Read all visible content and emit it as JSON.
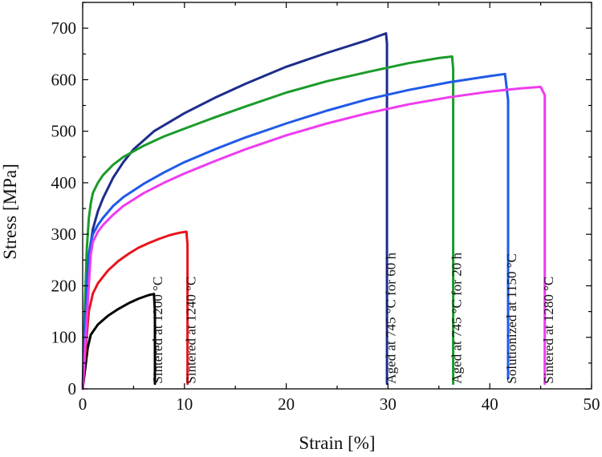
{
  "chart_data": {
    "type": "line",
    "title": "",
    "xlabel": "Strain [%]",
    "ylabel": "Stress [MPa]",
    "xlim": [
      0,
      50
    ],
    "ylim": [
      0,
      750
    ],
    "x_ticks": [
      0,
      10,
      20,
      30,
      40,
      50
    ],
    "y_ticks": [
      0,
      100,
      200,
      300,
      400,
      500,
      600,
      700
    ],
    "grid": false,
    "legend": "none (curves labeled directly by vertical annotations)",
    "series": [
      {
        "name": "Sintered at 1200 °C",
        "color": "#000000",
        "points": [
          [
            0,
            0
          ],
          [
            0.25,
            40
          ],
          [
            0.5,
            80
          ],
          [
            0.8,
            105
          ],
          [
            1.5,
            125
          ],
          [
            2.5,
            142
          ],
          [
            3.5,
            155
          ],
          [
            4.5,
            166
          ],
          [
            5.5,
            175
          ],
          [
            6.5,
            182
          ],
          [
            7.0,
            184
          ],
          [
            7.1,
            150
          ],
          [
            7.1,
            10
          ]
        ]
      },
      {
        "name": "Sintered at 1240 °C",
        "color": "#e8141c",
        "points": [
          [
            0,
            0
          ],
          [
            0.3,
            80
          ],
          [
            0.6,
            150
          ],
          [
            1.0,
            185
          ],
          [
            1.5,
            205
          ],
          [
            2.5,
            230
          ],
          [
            3.5,
            248
          ],
          [
            4.5,
            262
          ],
          [
            5.5,
            274
          ],
          [
            6.5,
            283
          ],
          [
            7.5,
            291
          ],
          [
            8.5,
            298
          ],
          [
            9.5,
            303
          ],
          [
            10.2,
            305
          ],
          [
            10.3,
            280
          ],
          [
            10.3,
            10
          ]
        ]
      },
      {
        "name": "Aged at 745 °C for 60 h",
        "color": "#1c2d8c",
        "points": [
          [
            0,
            0
          ],
          [
            0.2,
            100
          ],
          [
            0.4,
            200
          ],
          [
            0.7,
            270
          ],
          [
            1.0,
            310
          ],
          [
            1.5,
            345
          ],
          [
            2,
            370
          ],
          [
            3,
            410
          ],
          [
            4,
            440
          ],
          [
            5,
            465
          ],
          [
            7,
            500
          ],
          [
            10,
            535
          ],
          [
            13,
            565
          ],
          [
            16,
            592
          ],
          [
            20,
            625
          ],
          [
            24,
            652
          ],
          [
            28,
            677
          ],
          [
            29.8,
            690
          ],
          [
            29.9,
            670
          ],
          [
            29.9,
            10
          ]
        ]
      },
      {
        "name": "Aged at 745 °C for 20 h",
        "color": "#1a9b2a",
        "points": [
          [
            0,
            0
          ],
          [
            0.2,
            150
          ],
          [
            0.4,
            270
          ],
          [
            0.6,
            330
          ],
          [
            0.8,
            360
          ],
          [
            1.0,
            380
          ],
          [
            1.5,
            400
          ],
          [
            2,
            415
          ],
          [
            3,
            435
          ],
          [
            4,
            450
          ],
          [
            6,
            472
          ],
          [
            8,
            490
          ],
          [
            10,
            505
          ],
          [
            13,
            527
          ],
          [
            16,
            548
          ],
          [
            20,
            575
          ],
          [
            24,
            597
          ],
          [
            28,
            615
          ],
          [
            32,
            632
          ],
          [
            35,
            642
          ],
          [
            36.3,
            645
          ],
          [
            36.4,
            620
          ],
          [
            36.4,
            10
          ]
        ]
      },
      {
        "name": "Solutionized at 1150 °C",
        "color": "#1f5ae8",
        "points": [
          [
            0,
            0
          ],
          [
            0.2,
            100
          ],
          [
            0.4,
            200
          ],
          [
            0.6,
            260
          ],
          [
            0.8,
            285
          ],
          [
            1.0,
            300
          ],
          [
            1.5,
            318
          ],
          [
            2,
            332
          ],
          [
            3,
            355
          ],
          [
            4,
            372
          ],
          [
            6,
            398
          ],
          [
            8,
            420
          ],
          [
            10,
            440
          ],
          [
            13,
            465
          ],
          [
            16,
            488
          ],
          [
            20,
            515
          ],
          [
            24,
            540
          ],
          [
            28,
            562
          ],
          [
            32,
            580
          ],
          [
            36,
            595
          ],
          [
            40,
            607
          ],
          [
            41.5,
            611
          ],
          [
            41.8,
            560
          ],
          [
            41.8,
            20
          ]
        ]
      },
      {
        "name": "Sintered at 1280 °C",
        "color": "#ee3cf0",
        "points": [
          [
            0,
            0
          ],
          [
            0.3,
            100
          ],
          [
            0.6,
            200
          ],
          [
            0.8,
            260
          ],
          [
            1.0,
            285
          ],
          [
            1.5,
            305
          ],
          [
            2,
            318
          ],
          [
            3,
            338
          ],
          [
            4,
            355
          ],
          [
            6,
            380
          ],
          [
            8,
            400
          ],
          [
            10,
            418
          ],
          [
            13,
            442
          ],
          [
            16,
            465
          ],
          [
            20,
            492
          ],
          [
            24,
            515
          ],
          [
            28,
            535
          ],
          [
            32,
            552
          ],
          [
            36,
            566
          ],
          [
            40,
            577
          ],
          [
            43,
            583
          ],
          [
            45,
            586
          ],
          [
            45.4,
            570
          ],
          [
            45.4,
            10
          ]
        ]
      }
    ],
    "annotations": [
      {
        "text": "Sintered at 1200 °C",
        "x": 7.8,
        "y": 10,
        "color": "#000000"
      },
      {
        "text": "Sintered at 1240 °C",
        "x": 11.1,
        "y": 10,
        "color": "#e8141c"
      },
      {
        "text": "Aged at 745 °C for 60 h",
        "x": 30.7,
        "y": 10,
        "color": "#1c2d8c"
      },
      {
        "text": "Aged at 745 °C for 20 h",
        "x": 37.2,
        "y": 10,
        "color": "#1a9b2a"
      },
      {
        "text": "Solutionized at 1150 °C",
        "x": 42.6,
        "y": 10,
        "color": "#1f5ae8"
      },
      {
        "text": "Sintered at 1280 °C",
        "x": 46.2,
        "y": 10,
        "color": "#ee3cf0"
      }
    ]
  }
}
